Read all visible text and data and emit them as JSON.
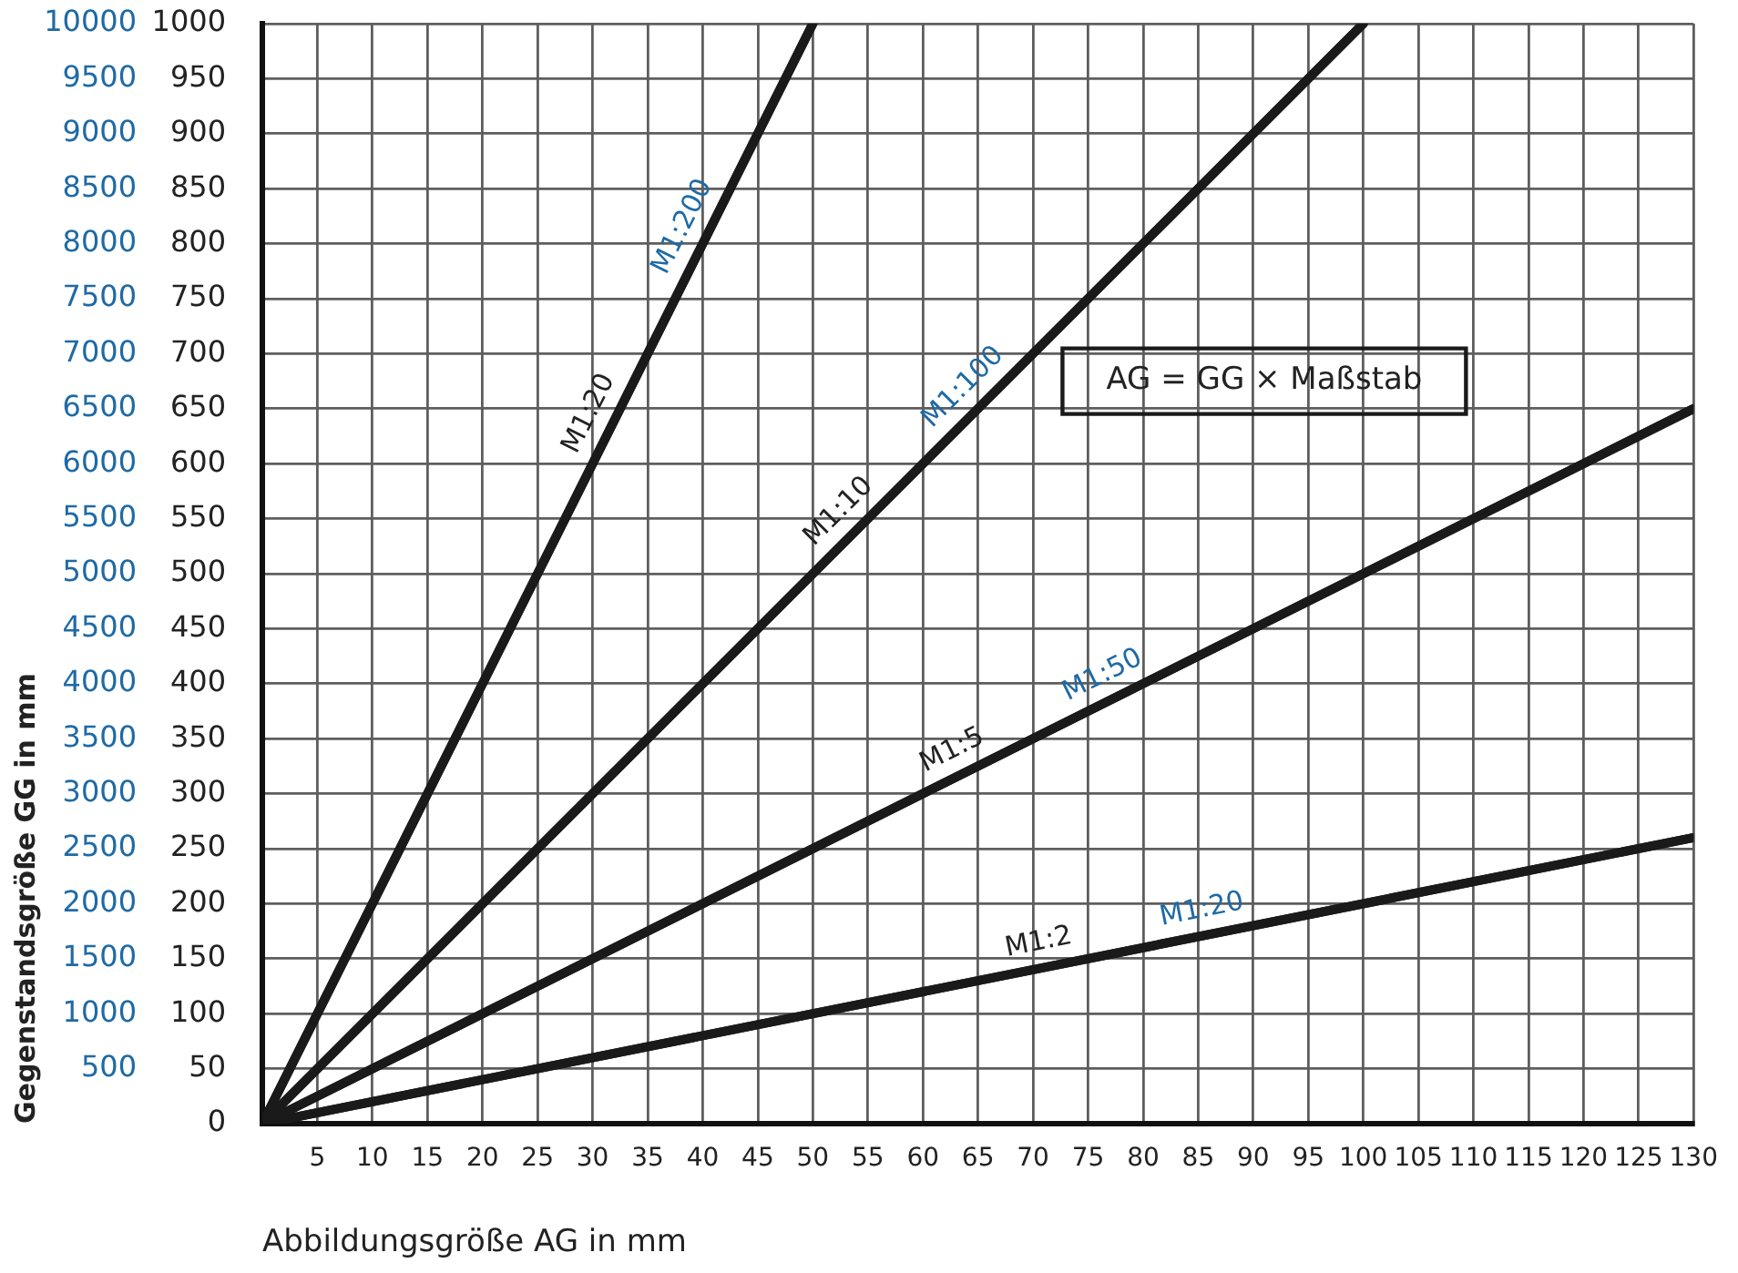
{
  "chart_data": {
    "type": "line",
    "xlabel": "Abbildungsgröße AG in mm",
    "ylabel": "Gegenstandsgröße GG in mm",
    "annotations": [
      "AG = GG × Maßstab"
    ],
    "series": [
      {
        "name": "M1:20",
        "color": "#1a1a1a",
        "axis": "y2",
        "x": [
          0,
          50
        ],
        "values": [
          0,
          1000
        ]
      },
      {
        "name": "M1:10",
        "color": "#1a1a1a",
        "axis": "y2",
        "x": [
          0,
          100
        ],
        "values": [
          0,
          1000
        ]
      },
      {
        "name": "M1:5",
        "color": "#1a1a1a",
        "axis": "y2",
        "x": [
          0,
          130
        ],
        "values": [
          0,
          650
        ]
      },
      {
        "name": "M1:2",
        "color": "#1a1a1a",
        "axis": "y2",
        "x": [
          0,
          130
        ],
        "values": [
          0,
          260
        ]
      },
      {
        "name": "M1:200",
        "color": "#1a1a1a",
        "x": [
          0,
          50
        ],
        "values": [
          0,
          10000
        ]
      },
      {
        "name": "M1:100",
        "color": "#1a1a1a",
        "x": [
          0,
          100
        ],
        "values": [
          0,
          10000
        ]
      },
      {
        "name": "M1:50",
        "color": "#1a1a1a",
        "x": [
          0,
          130
        ],
        "values": [
          0,
          6500
        ]
      },
      {
        "name": "M1:20",
        "color": "#1a1a1a",
        "x": [
          0,
          130
        ],
        "values": [
          0,
          2600
        ]
      }
    ],
    "xlim": [
      0,
      130
    ],
    "xticks": [
      5,
      10,
      15,
      20,
      25,
      30,
      35,
      40,
      45,
      50,
      55,
      60,
      65,
      70,
      75,
      80,
      85,
      90,
      95,
      100,
      105,
      110,
      115,
      120,
      125,
      130
    ],
    "ylim": [
      0,
      10000
    ],
    "yticks": [
      500,
      1000,
      1500,
      2000,
      2500,
      3000,
      3500,
      4000,
      4500,
      5000,
      5500,
      6000,
      6500,
      7000,
      7500,
      8000,
      8500,
      9000,
      9500,
      10000
    ],
    "y2lim": [
      0,
      1000
    ],
    "y2ticks": [
      0,
      50,
      100,
      150,
      200,
      250,
      300,
      350,
      400,
      450,
      500,
      550,
      600,
      650,
      700,
      750,
      800,
      850,
      900,
      950,
      1000
    ],
    "grid": true
  }
}
